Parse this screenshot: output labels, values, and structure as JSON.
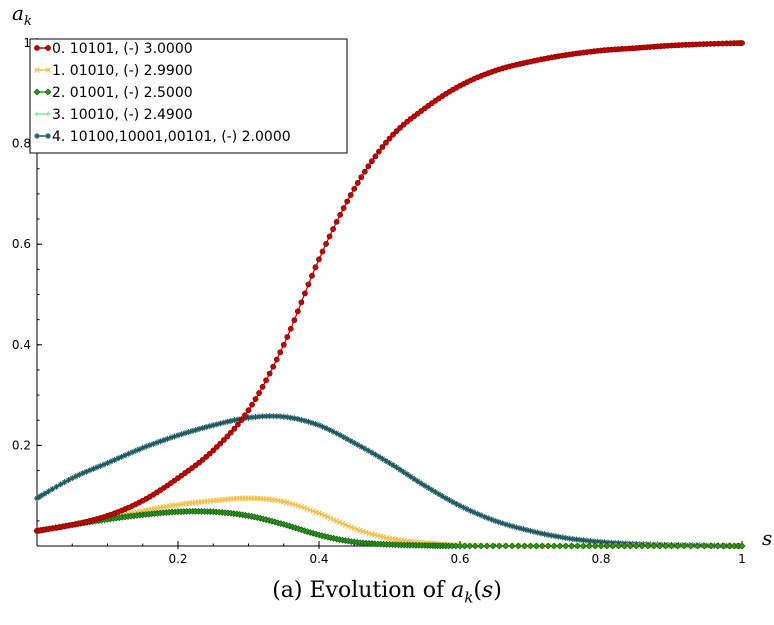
{
  "caption": "(a) Evolution of a_k(s)",
  "chart_data": {
    "type": "line",
    "xlabel": "s",
    "ylabel": "a_k",
    "xlim": [
      0,
      1
    ],
    "ylim": [
      0,
      1
    ],
    "xticks": [
      "0.2",
      "0.4",
      "0.6",
      "0.8",
      "1"
    ],
    "xtick_values": [
      0.2,
      0.4,
      0.6,
      0.8,
      1.0
    ],
    "yticks": [
      "0.2",
      "0.4",
      "0.6",
      "0.8",
      "1"
    ],
    "ytick_values": [
      0.2,
      0.4,
      0.6,
      0.8,
      1.0
    ],
    "grid": false,
    "legend_position": "top-left",
    "series": [
      {
        "name": "0. 10101, (-) 3.0000",
        "color": "#c00000",
        "marker": "circle",
        "x": [
          0.0,
          0.05,
          0.1,
          0.15,
          0.2,
          0.25,
          0.3,
          0.35,
          0.4,
          0.45,
          0.5,
          0.55,
          0.6,
          0.65,
          0.7,
          0.75,
          0.8,
          0.85,
          0.9,
          0.95,
          1.0
        ],
        "y": [
          0.03,
          0.042,
          0.06,
          0.09,
          0.135,
          0.19,
          0.27,
          0.4,
          0.57,
          0.71,
          0.81,
          0.87,
          0.915,
          0.945,
          0.963,
          0.976,
          0.985,
          0.99,
          0.995,
          0.998,
          1.0
        ]
      },
      {
        "name": "1. 01010, (-) 2.9900",
        "color": "#f2c14e",
        "marker": "x",
        "x": [
          0.0,
          0.05,
          0.1,
          0.15,
          0.2,
          0.25,
          0.3,
          0.35,
          0.4,
          0.45,
          0.5,
          0.55,
          0.6,
          0.7,
          0.8,
          0.9,
          1.0
        ],
        "y": [
          0.03,
          0.042,
          0.055,
          0.07,
          0.082,
          0.09,
          0.095,
          0.088,
          0.065,
          0.035,
          0.015,
          0.006,
          0.002,
          0.0,
          0.0,
          0.0,
          0.0
        ]
      },
      {
        "name": "2. 01001, (-) 2.5000",
        "color": "#2a9a1a",
        "marker": "diamond",
        "x": [
          0.0,
          0.05,
          0.1,
          0.15,
          0.2,
          0.25,
          0.3,
          0.35,
          0.4,
          0.45,
          0.5,
          0.55,
          0.6,
          0.7,
          0.8,
          0.9,
          1.0
        ],
        "y": [
          0.03,
          0.042,
          0.053,
          0.062,
          0.068,
          0.068,
          0.06,
          0.043,
          0.022,
          0.008,
          0.003,
          0.001,
          0.0,
          0.0,
          0.0,
          0.0,
          0.0
        ]
      },
      {
        "name": "3. 10010, (-) 2.4900",
        "color": "#8ce08c",
        "marker": "plus",
        "x": [
          0.0,
          0.05,
          0.1,
          0.15,
          0.2,
          0.25,
          0.3,
          0.35,
          0.4,
          0.45,
          0.5,
          0.55,
          0.6,
          0.7,
          0.8,
          0.9,
          1.0
        ],
        "y": [
          0.03,
          0.043,
          0.054,
          0.063,
          0.069,
          0.069,
          0.061,
          0.044,
          0.023,
          0.009,
          0.003,
          0.001,
          0.0,
          0.0,
          0.0,
          0.0,
          0.0
        ]
      },
      {
        "name": "4. 10100,10001,00101, (-) 2.0000",
        "color": "#1e5a62",
        "marker": "star",
        "x": [
          0.0,
          0.05,
          0.1,
          0.15,
          0.2,
          0.25,
          0.3,
          0.35,
          0.4,
          0.45,
          0.5,
          0.55,
          0.6,
          0.65,
          0.7,
          0.75,
          0.8,
          0.85,
          0.9,
          0.95,
          1.0
        ],
        "y": [
          0.095,
          0.135,
          0.165,
          0.195,
          0.22,
          0.24,
          0.255,
          0.257,
          0.24,
          0.205,
          0.165,
          0.12,
          0.08,
          0.05,
          0.03,
          0.016,
          0.008,
          0.004,
          0.002,
          0.001,
          0.0
        ]
      }
    ]
  }
}
